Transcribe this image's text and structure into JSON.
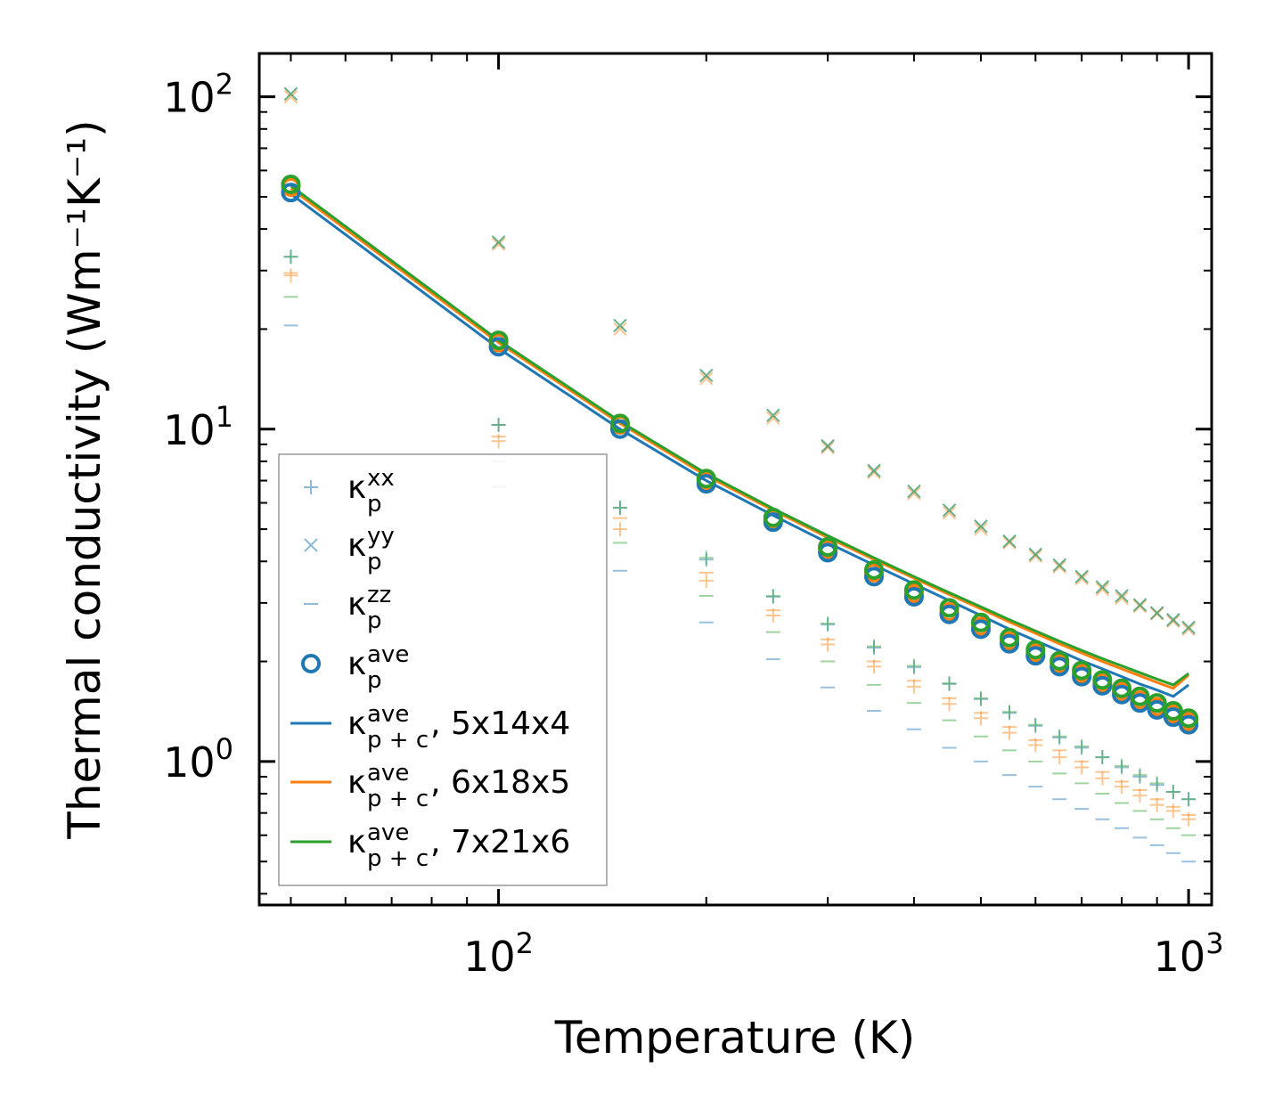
{
  "chart_data": {
    "type": "scatter",
    "title": "",
    "xlabel": "Temperature (K)",
    "ylabel": "Thermal conductivity (Wm⁻¹K⁻¹)",
    "xscale": "log",
    "yscale": "log",
    "xlim": [
      45,
      1080
    ],
    "ylim": [
      0.37,
      135
    ],
    "x_ticks": [
      {
        "value": 100,
        "base": "10",
        "exp": "2"
      },
      {
        "value": 1000,
        "base": "10",
        "exp": "3"
      }
    ],
    "y_ticks": [
      {
        "value": 1,
        "base": "10",
        "exp": "0"
      },
      {
        "value": 10,
        "base": "10",
        "exp": "1"
      },
      {
        "value": 100,
        "base": "10",
        "exp": "2"
      }
    ],
    "legend_position": "lower-left",
    "x": [
      50,
      100,
      150,
      200,
      250,
      300,
      350,
      400,
      450,
      500,
      550,
      600,
      650,
      700,
      750,
      800,
      850,
      900,
      950,
      1000
    ],
    "markers": [
      {
        "name": "6x18x5",
        "color": "#ff7f0e",
        "alpha": 0.45,
        "xx": [
          29,
          9.2,
          5.0,
          3.5,
          2.75,
          2.25,
          1.93,
          1.68,
          1.49,
          1.35,
          1.22,
          1.12,
          1.03,
          0.96,
          0.89,
          0.84,
          0.79,
          0.74,
          0.71,
          0.67
        ],
        "yy": [
          100,
          36,
          20,
          14.2,
          10.8,
          8.8,
          7.4,
          6.4,
          5.6,
          5.0,
          4.55,
          4.15,
          3.85,
          3.55,
          3.3,
          3.1,
          2.93,
          2.78,
          2.64,
          2.5
        ],
        "zz": [
          29.5,
          9.5,
          5.4,
          3.7,
          2.85,
          2.33,
          2.0,
          1.75,
          1.55,
          1.4,
          1.27,
          1.16,
          1.08,
          1.0,
          0.93,
          0.87,
          0.82,
          0.77,
          0.73,
          0.69
        ],
        "ave": [
          53.5,
          18.2,
          10.3,
          7.0,
          5.35,
          4.35,
          3.7,
          3.2,
          2.82,
          2.55,
          2.3,
          2.12,
          1.97,
          1.84,
          1.72,
          1.62,
          1.53,
          1.46,
          1.39,
          1.32
        ]
      },
      {
        "name": "5x14x4",
        "color": "#1f77b4",
        "alpha": 0.45,
        "xx": [
          33,
          10.3,
          5.8,
          4.05,
          3.13,
          2.58,
          2.2,
          1.92,
          1.71,
          1.54,
          1.4,
          1.28,
          1.18,
          1.1,
          1.03,
          0.96,
          0.9,
          0.85,
          0.81,
          0.77
        ],
        "yy": [
          102,
          36.5,
          20.5,
          14.5,
          11.0,
          8.9,
          7.5,
          6.5,
          5.7,
          5.1,
          4.6,
          4.2,
          3.9,
          3.6,
          3.35,
          3.15,
          2.96,
          2.8,
          2.67,
          2.53
        ],
        "zz": [
          20.5,
          6.7,
          3.75,
          2.62,
          2.03,
          1.67,
          1.42,
          1.25,
          1.1,
          1.0,
          0.91,
          0.84,
          0.77,
          0.72,
          0.67,
          0.63,
          0.59,
          0.56,
          0.53,
          0.5
        ],
        "ave": [
          51.5,
          17.7,
          10.0,
          6.85,
          5.25,
          4.25,
          3.6,
          3.13,
          2.77,
          2.5,
          2.26,
          2.08,
          1.93,
          1.8,
          1.69,
          1.59,
          1.5,
          1.43,
          1.36,
          1.29
        ]
      },
      {
        "name": "7x21x6",
        "color": "#2ca02c",
        "alpha": 0.45,
        "xx": [
          33,
          10.3,
          5.8,
          4.1,
          3.15,
          2.6,
          2.22,
          1.94,
          1.72,
          1.55,
          1.41,
          1.29,
          1.19,
          1.11,
          1.03,
          0.97,
          0.91,
          0.86,
          0.81,
          0.77
        ],
        "yy": [
          102,
          36.5,
          20.5,
          14.5,
          11.0,
          8.9,
          7.5,
          6.5,
          5.7,
          5.1,
          4.6,
          4.2,
          3.9,
          3.6,
          3.35,
          3.15,
          2.96,
          2.8,
          2.67,
          2.53
        ],
        "zz": [
          25,
          8.0,
          4.55,
          3.15,
          2.45,
          2.0,
          1.7,
          1.5,
          1.33,
          1.19,
          1.08,
          1.0,
          0.92,
          0.86,
          0.8,
          0.75,
          0.71,
          0.67,
          0.63,
          0.6
        ],
        "ave": [
          54.5,
          18.5,
          10.4,
          7.1,
          5.42,
          4.42,
          3.77,
          3.28,
          2.9,
          2.62,
          2.36,
          2.17,
          2.01,
          1.88,
          1.76,
          1.66,
          1.57,
          1.5,
          1.42,
          1.35
        ]
      }
    ],
    "lines": [
      {
        "name": "5x14x4",
        "color": "#1f77b4",
        "values": [
          51,
          17.5,
          10.0,
          7.0,
          5.5,
          4.55,
          3.9,
          3.42,
          3.05,
          2.75,
          2.5,
          2.31,
          2.15,
          2.01,
          1.9,
          1.8,
          1.71,
          1.64,
          1.57,
          1.7
        ]
      },
      {
        "name": "6x18x5",
        "color": "#ff7f0e",
        "values": [
          53,
          18.2,
          10.4,
          7.25,
          5.7,
          4.72,
          4.05,
          3.56,
          3.18,
          2.88,
          2.63,
          2.43,
          2.26,
          2.12,
          2.0,
          1.9,
          1.81,
          1.73,
          1.66,
          1.82
        ]
      },
      {
        "name": "7x21x6",
        "color": "#2ca02c",
        "values": [
          54,
          18.5,
          10.55,
          7.35,
          5.77,
          4.78,
          4.1,
          3.6,
          3.22,
          2.92,
          2.67,
          2.47,
          2.3,
          2.16,
          2.04,
          1.94,
          1.85,
          1.77,
          1.7,
          1.84
        ]
      }
    ],
    "legend": [
      {
        "kind": "plus",
        "color": "#1f77b4",
        "kappa": "κ",
        "sub": "p",
        "sup": "xx",
        "suffix": ""
      },
      {
        "kind": "cross",
        "color": "#1f77b4",
        "kappa": "κ",
        "sub": "p",
        "sup": "yy",
        "suffix": ""
      },
      {
        "kind": "dash",
        "color": "#1f77b4",
        "kappa": "κ",
        "sub": "p",
        "sup": "zz",
        "suffix": ""
      },
      {
        "kind": "circle",
        "color": "#1f77b4",
        "kappa": "κ",
        "sub": "p",
        "sup": "ave",
        "suffix": ""
      },
      {
        "kind": "line",
        "color": "#1f77b4",
        "kappa": "κ",
        "sub": "p + c",
        "sup": "ave",
        "suffix": ", 5x14x4"
      },
      {
        "kind": "line",
        "color": "#ff7f0e",
        "kappa": "κ",
        "sub": "p + c",
        "sup": "ave",
        "suffix": ", 6x18x5"
      },
      {
        "kind": "line",
        "color": "#2ca02c",
        "kappa": "κ",
        "sub": "p + c",
        "sup": "ave",
        "suffix": ", 7x21x6"
      }
    ]
  }
}
